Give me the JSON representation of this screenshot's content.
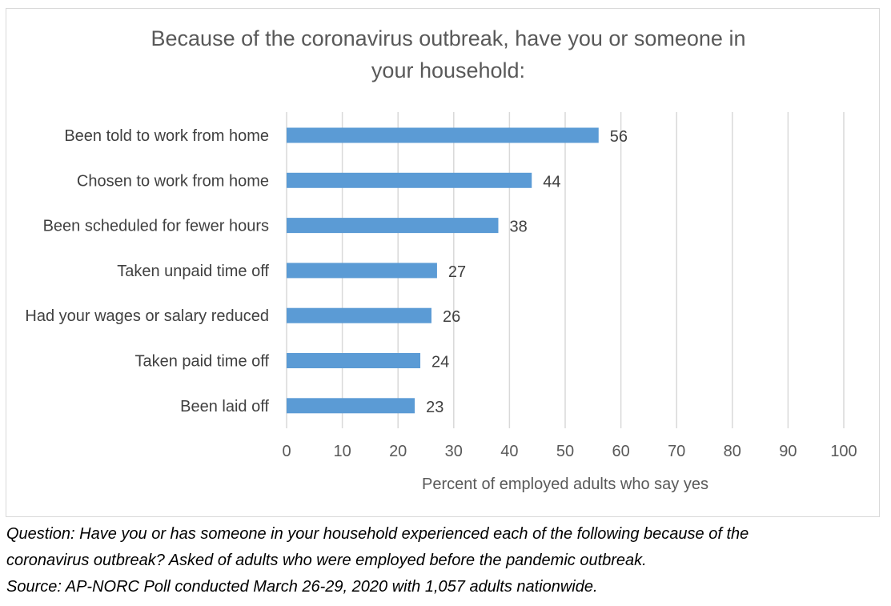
{
  "chart_data": {
    "type": "bar",
    "orientation": "horizontal",
    "title_lines": [
      "Because of the coronavirus outbreak, have you or someone in",
      "your household:"
    ],
    "categories": [
      "Been told to work from home",
      "Chosen to work from home",
      "Been scheduled for fewer hours",
      "Taken unpaid time off",
      "Had your wages or salary reduced",
      "Taken paid time off",
      "Been laid off"
    ],
    "values": [
      56,
      44,
      38,
      27,
      26,
      24,
      23
    ],
    "xlabel": "Percent of employed adults who say yes",
    "xlim": [
      0,
      100
    ],
    "xticks": [
      0,
      10,
      20,
      30,
      40,
      50,
      60,
      70,
      80,
      90,
      100
    ],
    "grid": true,
    "legend": "none",
    "bar_color": "#5b9bd5",
    "grid_color": "#d9d9d9"
  },
  "notes": {
    "question_line1": "Question: Have you or has someone in your household experienced each of the following because of the",
    "question_line2": "coronavirus outbreak? Asked of adults who were employed before the pandemic outbreak.",
    "source": "Source: AP-NORC Poll conducted March 26-29, 2020 with 1,057 adults nationwide."
  }
}
